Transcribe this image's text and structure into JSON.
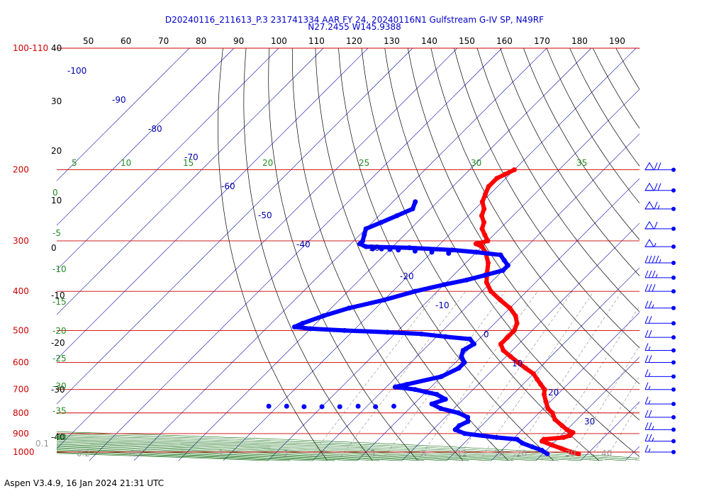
{
  "header": {
    "line1": "D20240116_211613_P.3 231741334 AAR FY 24, 20240116N1 Gulfstream G-IV SP, N49RF",
    "line2": "N27.2455 W145.9388"
  },
  "footer": {
    "version": "Aspen V3.4.9, 16 Jan 2024  21:31 UTC"
  },
  "colors": {
    "temperature": "#ff0000",
    "dewpoint": "#0000ff",
    "isobar": "#cc0000",
    "mixing_ratio": "#888888",
    "dry_adiabat": "#006600",
    "moist_adiabat": "#006600",
    "isotherm": "#0000aa"
  },
  "chart_data": {
    "type": "skew-t",
    "top_temperature_ticks": [
      "50",
      "60",
      "70",
      "80",
      "90",
      "100",
      "110",
      "120",
      "130",
      "140",
      "150",
      "160",
      "170",
      "180",
      "190"
    ],
    "pressure_labels": [
      {
        "p": 100,
        "text": "100-110"
      },
      {
        "p": 200,
        "text": "200"
      },
      {
        "p": 300,
        "text": "300"
      },
      {
        "p": 400,
        "text": "400"
      },
      {
        "p": 500,
        "text": "500"
      },
      {
        "p": 600,
        "text": "600"
      },
      {
        "p": 700,
        "text": "700"
      },
      {
        "p": 800,
        "text": "800"
      },
      {
        "p": 900,
        "text": "900"
      },
      {
        "p": 1000,
        "text": "1000"
      }
    ],
    "height_labels": [
      "40",
      "30",
      "20",
      "10",
      "0",
      "-10",
      "-20",
      "-30",
      "-40"
    ],
    "isotherm_labels": [
      "-100",
      "-90",
      "-80",
      "-70",
      "-60",
      "-50",
      "-40",
      "-30",
      "-20",
      "-10",
      "0",
      "10",
      "20",
      "30"
    ],
    "theta_e_labels": [
      "5",
      "10",
      "15",
      "20",
      "25",
      "30",
      "35"
    ],
    "dry_adiabat_labels": [
      "0",
      "-5",
      "-10",
      "-15",
      "-20",
      "-25",
      "-30",
      "-35",
      "-40"
    ],
    "mixing_ratio_labels": [
      "0.1",
      "0.2",
      "0.5",
      "1",
      "2",
      "3",
      "5",
      "8",
      "12",
      "16",
      "20",
      "30",
      "40"
    ],
    "temperature_profile": [
      {
        "p": 200,
        "t": -60
      },
      {
        "p": 205,
        "t": -61
      },
      {
        "p": 210,
        "t": -62
      },
      {
        "p": 220,
        "t": -62
      },
      {
        "p": 230,
        "t": -61
      },
      {
        "p": 240,
        "t": -60
      },
      {
        "p": 250,
        "t": -58
      },
      {
        "p": 260,
        "t": -57
      },
      {
        "p": 270,
        "t": -55
      },
      {
        "p": 280,
        "t": -54
      },
      {
        "p": 290,
        "t": -52
      },
      {
        "p": 300,
        "t": -50
      },
      {
        "p": 305,
        "t": -52
      },
      {
        "p": 310,
        "t": -50
      },
      {
        "p": 320,
        "t": -48
      },
      {
        "p": 340,
        "t": -45
      },
      {
        "p": 360,
        "t": -43
      },
      {
        "p": 380,
        "t": -41
      },
      {
        "p": 400,
        "t": -38
      },
      {
        "p": 420,
        "t": -34
      },
      {
        "p": 440,
        "t": -30
      },
      {
        "p": 460,
        "t": -27
      },
      {
        "p": 480,
        "t": -25
      },
      {
        "p": 500,
        "t": -24
      },
      {
        "p": 520,
        "t": -24
      },
      {
        "p": 540,
        "t": -24
      },
      {
        "p": 560,
        "t": -22
      },
      {
        "p": 580,
        "t": -19
      },
      {
        "p": 600,
        "t": -16
      },
      {
        "p": 620,
        "t": -13
      },
      {
        "p": 640,
        "t": -10
      },
      {
        "p": 660,
        "t": -8
      },
      {
        "p": 680,
        "t": -6
      },
      {
        "p": 700,
        "t": -4
      },
      {
        "p": 720,
        "t": -3
      },
      {
        "p": 750,
        "t": -1
      },
      {
        "p": 780,
        "t": 1
      },
      {
        "p": 800,
        "t": 3
      },
      {
        "p": 830,
        "t": 5
      },
      {
        "p": 860,
        "t": 8
      },
      {
        "p": 880,
        "t": 10
      },
      {
        "p": 895,
        "t": 12
      },
      {
        "p": 910,
        "t": 12
      },
      {
        "p": 920,
        "t": 11
      },
      {
        "p": 930,
        "t": 7
      },
      {
        "p": 940,
        "t": 7
      },
      {
        "p": 960,
        "t": 10
      },
      {
        "p": 980,
        "t": 13
      },
      {
        "p": 1000,
        "t": 16
      },
      {
        "p": 1010,
        "t": 18
      }
    ],
    "dewpoint_profile": [
      {
        "p": 240,
        "t": -75
      },
      {
        "p": 250,
        "t": -74
      },
      {
        "p": 260,
        "t": -76
      },
      {
        "p": 270,
        "t": -78
      },
      {
        "p": 280,
        "t": -80
      },
      {
        "p": 290,
        "t": -79
      },
      {
        "p": 300,
        "t": -78
      },
      {
        "p": 305,
        "t": -78
      },
      {
        "p": 310,
        "t": -76
      },
      {
        "p": 312,
        "t": -66
      },
      {
        "p": 316,
        "t": -56
      },
      {
        "p": 320,
        "t": -50
      },
      {
        "p": 325,
        "t": -44
      },
      {
        "p": 335,
        "t": -42
      },
      {
        "p": 345,
        "t": -40
      },
      {
        "p": 355,
        "t": -40
      },
      {
        "p": 365,
        "t": -43
      },
      {
        "p": 375,
        "t": -46
      },
      {
        "p": 385,
        "t": -50
      },
      {
        "p": 400,
        "t": -55
      },
      {
        "p": 420,
        "t": -60
      },
      {
        "p": 440,
        "t": -66
      },
      {
        "p": 460,
        "t": -70
      },
      {
        "p": 480,
        "t": -73
      },
      {
        "p": 490,
        "t": -74
      },
      {
        "p": 495,
        "t": -70
      },
      {
        "p": 500,
        "t": -62
      },
      {
        "p": 505,
        "t": -52
      },
      {
        "p": 510,
        "t": -44
      },
      {
        "p": 518,
        "t": -38
      },
      {
        "p": 525,
        "t": -32
      },
      {
        "p": 540,
        "t": -30
      },
      {
        "p": 560,
        "t": -31
      },
      {
        "p": 580,
        "t": -30
      },
      {
        "p": 600,
        "t": -28
      },
      {
        "p": 620,
        "t": -28
      },
      {
        "p": 650,
        "t": -30
      },
      {
        "p": 680,
        "t": -36
      },
      {
        "p": 690,
        "t": -38
      },
      {
        "p": 700,
        "t": -33
      },
      {
        "p": 710,
        "t": -30
      },
      {
        "p": 720,
        "t": -27
      },
      {
        "p": 740,
        "t": -24
      },
      {
        "p": 760,
        "t": -26
      },
      {
        "p": 780,
        "t": -23
      },
      {
        "p": 800,
        "t": -18
      },
      {
        "p": 820,
        "t": -15
      },
      {
        "p": 840,
        "t": -14
      },
      {
        "p": 860,
        "t": -15
      },
      {
        "p": 880,
        "t": -15
      },
      {
        "p": 900,
        "t": -12
      },
      {
        "p": 920,
        "t": -4
      },
      {
        "p": 930,
        "t": 1
      },
      {
        "p": 950,
        "t": 3
      },
      {
        "p": 970,
        "t": 6
      },
      {
        "p": 990,
        "t": 9
      },
      {
        "p": 1010,
        "t": 11
      }
    ],
    "dewpoint_isolated_points": [
      {
        "p": 314,
        "t": -74
      },
      {
        "p": 314,
        "t": -72
      },
      {
        "p": 315,
        "t": -70
      },
      {
        "p": 316,
        "t": -68
      },
      {
        "p": 318,
        "t": -64
      },
      {
        "p": 320,
        "t": -60
      },
      {
        "p": 322,
        "t": -56
      },
      {
        "p": 770,
        "t": -62
      },
      {
        "p": 770,
        "t": -58
      },
      {
        "p": 772,
        "t": -54
      },
      {
        "p": 772,
        "t": -50
      },
      {
        "p": 772,
        "t": -46
      },
      {
        "p": 770,
        "t": -42
      },
      {
        "p": 772,
        "t": -38
      },
      {
        "p": 770,
        "t": -34
      }
    ],
    "wind_barbs": [
      {
        "p": 200,
        "speed": 70
      },
      {
        "p": 225,
        "speed": 70
      },
      {
        "p": 250,
        "speed": 65
      },
      {
        "p": 280,
        "speed": 60
      },
      {
        "p": 310,
        "speed": 55
      },
      {
        "p": 340,
        "speed": 45
      },
      {
        "p": 370,
        "speed": 35
      },
      {
        "p": 400,
        "speed": 30
      },
      {
        "p": 440,
        "speed": 25
      },
      {
        "p": 480,
        "speed": 20
      },
      {
        "p": 520,
        "speed": 20
      },
      {
        "p": 560,
        "speed": 15
      },
      {
        "p": 600,
        "speed": 20
      },
      {
        "p": 650,
        "speed": 15
      },
      {
        "p": 700,
        "speed": 15
      },
      {
        "p": 760,
        "speed": 15
      },
      {
        "p": 820,
        "speed": 20
      },
      {
        "p": 880,
        "speed": 25
      },
      {
        "p": 940,
        "speed": 25
      },
      {
        "p": 1000,
        "speed": 15
      }
    ]
  }
}
